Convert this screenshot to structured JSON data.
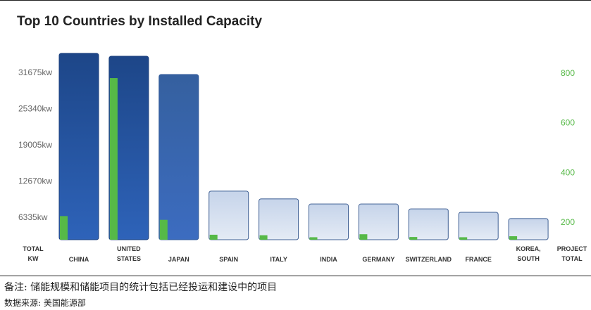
{
  "chart_data": {
    "type": "bar",
    "title": "Top 10 Countries by Installed Capacity",
    "y_left_label": [
      "TOTAL",
      "KW"
    ],
    "y_right_label": [
      "PROJECT",
      "TOTAL"
    ],
    "y_left_ticks": [
      "6335kw",
      "12670kw",
      "19005kw",
      "25340kw",
      "31675kw"
    ],
    "y_right_ticks": [
      "200",
      "400",
      "600",
      "800"
    ],
    "categories": [
      [
        "CHINA"
      ],
      [
        "UNITED",
        "STATES"
      ],
      [
        "JAPAN"
      ],
      [
        "SPAIN"
      ],
      [
        "ITALY"
      ],
      [
        "INDIA"
      ],
      [
        "GERMANY"
      ],
      [
        "SWITZERLAND"
      ],
      [
        "FRANCE"
      ],
      [
        "KOREA,",
        "SOUTH"
      ]
    ],
    "series": [
      {
        "name": "TOTAL KW",
        "axis": "left",
        "values": [
          35000,
          34500,
          31300,
          10900,
          9550,
          8650,
          8650,
          7800,
          7200,
          6100
        ]
      },
      {
        "name": "PROJECT TOTAL",
        "axis": "right",
        "values": [
          225,
          780,
          210,
          150,
          148,
          140,
          152,
          141,
          140,
          144
        ]
      }
    ],
    "ylim_left": [
      2400,
      37200
    ],
    "ylim_right": [
      130,
      930
    ],
    "colors": {
      "highlight_bar": "#2b5fb2",
      "muted_bar": "#d9e3f1",
      "project_bar": "#56b947",
      "right_axis": "#56b947"
    },
    "legend": "none",
    "grid": false
  },
  "footer": {
    "note": "备注: 储能规模和储能项目的统计包括已经投运和建设中的项目",
    "source": "数据来源: 美国能源部"
  }
}
